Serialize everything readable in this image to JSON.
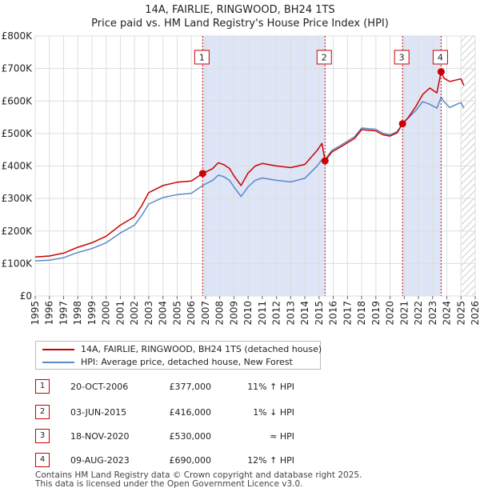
{
  "title": "14A, FAIRLIE, RINGWOOD, BH24 1TS",
  "subtitle": "Price paid vs. HM Land Registry's House Price Index (HPI)",
  "colors": {
    "property_line": "#cc0000",
    "hpi_line": "#5a8ac6",
    "shade": "#dde5f6",
    "grid": "#dddddd",
    "marker_border": "#cc0000"
  },
  "chart_data": {
    "type": "line",
    "title": "14A, FAIRLIE, RINGWOOD, BH24 1TS",
    "subtitle": "Price paid vs. HM Land Registry's House Price Index (HPI)",
    "xlim": [
      1995,
      2026
    ],
    "ylim": [
      0,
      800000
    ],
    "ytick_values": [
      0,
      100000,
      200000,
      300000,
      400000,
      500000,
      600000,
      700000,
      800000
    ],
    "ytick_labels": [
      "£0",
      "£100K",
      "£200K",
      "£300K",
      "£400K",
      "£500K",
      "£600K",
      "£700K",
      "£800K"
    ],
    "xtick_values": [
      1995,
      1996,
      1997,
      1998,
      1999,
      2000,
      2001,
      2002,
      2003,
      2004,
      2005,
      2006,
      2007,
      2008,
      2009,
      2010,
      2011,
      2012,
      2013,
      2014,
      2015,
      2016,
      2017,
      2018,
      2019,
      2020,
      2021,
      2022,
      2023,
      2024,
      2025,
      2026
    ],
    "xtick_labels": [
      "1995",
      "1996",
      "1997",
      "1998",
      "1999",
      "2000",
      "2001",
      "2002",
      "2003",
      "2004",
      "2005",
      "2006",
      "2007",
      "2008",
      "2009",
      "2010",
      "2011",
      "2012",
      "2013",
      "2014",
      "2015",
      "2016",
      "2017",
      "2018",
      "2019",
      "2020",
      "2021",
      "2022",
      "2023",
      "2024",
      "2025",
      "2026"
    ],
    "grid": true,
    "shaded_periods": [
      [
        2006.8,
        2015.42
      ],
      [
        2020.88,
        2023.6
      ]
    ],
    "hatched_from": 2025.05,
    "series": [
      {
        "name": "14A, FAIRLIE, RINGWOOD, BH24 1TS (detached house)",
        "x": [
          1995.0,
          1996.0,
          1997.0,
          1998.0,
          1999.0,
          2000.0,
          2001.0,
          2002.0,
          2002.5,
          2003.0,
          2004.0,
          2005.0,
          2006.0,
          2006.8,
          2007.5,
          2007.9,
          2008.3,
          2008.7,
          2009.0,
          2009.5,
          2010.0,
          2010.5,
          2011.0,
          2012.0,
          2013.0,
          2014.0,
          2014.9,
          2015.2,
          2015.42,
          2015.9,
          2016.5,
          2017.5,
          2018.0,
          2019.0,
          2019.5,
          2020.0,
          2020.5,
          2020.88,
          2021.3,
          2021.8,
          2022.3,
          2022.8,
          2023.3,
          2023.6,
          2023.8,
          2024.2,
          2024.7,
          2025.0,
          2025.2
        ],
        "values": [
          120000,
          123000,
          132000,
          150000,
          164000,
          184000,
          218000,
          244000,
          278000,
          318000,
          340000,
          350000,
          354000,
          377000,
          392000,
          410000,
          404000,
          392000,
          370000,
          340000,
          378000,
          400000,
          408000,
          400000,
          395000,
          405000,
          450000,
          470000,
          416000,
          443000,
          458000,
          485000,
          512000,
          508000,
          496000,
          492000,
          502000,
          530000,
          550000,
          582000,
          620000,
          640000,
          625000,
          690000,
          670000,
          660000,
          665000,
          668000,
          648000
        ]
      },
      {
        "name": "HPI: Average price, detached house, New Forest",
        "x": [
          1995.0,
          1996.0,
          1997.0,
          1998.0,
          1999.0,
          2000.0,
          2001.0,
          2002.0,
          2002.5,
          2003.0,
          2004.0,
          2005.0,
          2006.0,
          2006.8,
          2007.5,
          2007.9,
          2008.3,
          2008.7,
          2009.0,
          2009.5,
          2010.0,
          2010.5,
          2011.0,
          2012.0,
          2013.0,
          2014.0,
          2014.9,
          2015.2,
          2015.42,
          2015.9,
          2016.5,
          2017.5,
          2018.0,
          2019.0,
          2019.5,
          2020.0,
          2020.5,
          2020.88,
          2021.3,
          2021.8,
          2022.3,
          2022.8,
          2023.3,
          2023.6,
          2023.8,
          2024.2,
          2024.7,
          2025.0,
          2025.2
        ],
        "values": [
          108000,
          110000,
          118000,
          134000,
          146000,
          164000,
          194000,
          218000,
          248000,
          283000,
          303000,
          312000,
          316000,
          340000,
          356000,
          372000,
          367000,
          355000,
          336000,
          306000,
          336000,
          356000,
          363000,
          356000,
          351000,
          362000,
          402000,
          420000,
          420000,
          448000,
          463000,
          490000,
          517000,
          513000,
          501000,
          496000,
          506000,
          530000,
          548000,
          570000,
          598000,
          590000,
          578000,
          612000,
          598000,
          580000,
          590000,
          595000,
          578000
        ]
      }
    ],
    "markers": [
      {
        "label": "1",
        "x": 2006.8,
        "value": 377000
      },
      {
        "label": "2",
        "x": 2015.42,
        "value": 416000
      },
      {
        "label": "3",
        "x": 2020.88,
        "value": 530000
      },
      {
        "label": "4",
        "x": 2023.6,
        "value": 690000
      }
    ]
  },
  "legend": {
    "property_label": "14A, FAIRLIE, RINGWOOD, BH24 1TS (detached house)",
    "hpi_label": "HPI: Average price, detached house, New Forest"
  },
  "sales": [
    {
      "num": "1",
      "date": "20-OCT-2006",
      "price": "£377,000",
      "hpi": "11% ↑ HPI"
    },
    {
      "num": "2",
      "date": "03-JUN-2015",
      "price": "£416,000",
      "hpi": "1% ↓ HPI"
    },
    {
      "num": "3",
      "date": "18-NOV-2020",
      "price": "£530,000",
      "hpi": "≈ HPI"
    },
    {
      "num": "4",
      "date": "09-AUG-2023",
      "price": "£690,000",
      "hpi": "12% ↑ HPI"
    }
  ],
  "footer": {
    "line1": "Contains HM Land Registry data © Crown copyright and database right 2025.",
    "line2": "This data is licensed under the Open Government Licence v3.0."
  }
}
